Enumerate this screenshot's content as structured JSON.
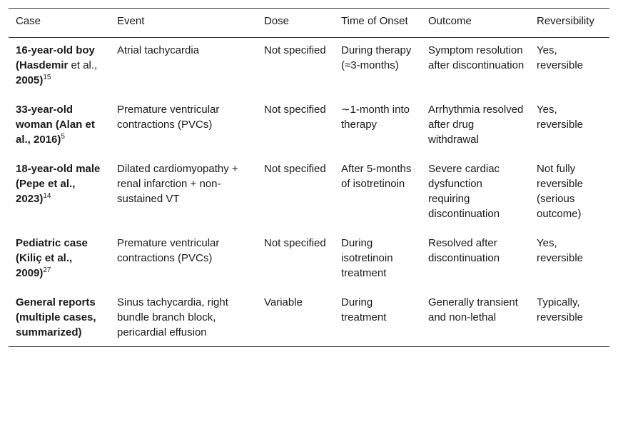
{
  "headers": [
    "Case",
    "Event",
    "Dose",
    "Time of Onset",
    "Outcome",
    "Reversibility"
  ],
  "rows": [
    {
      "case_bold_1": "16-year-old boy (Hasdemir",
      "case_normal": " et al., ",
      "case_bold_2": "2005)",
      "case_ref": "15",
      "event": "Atrial tachycardia",
      "dose": "Not specified",
      "onset": "During therapy (≈3-months)",
      "outcome": "Symptom resolution after discontinuation",
      "reversibility": "Yes, reversible"
    },
    {
      "case_bold_1": "33-year-old woman (Alan et al., 2016)",
      "case_normal": "",
      "case_bold_2": "",
      "case_ref": "5",
      "event": "Premature ventricular contractions (PVCs)",
      "dose": "Not specified",
      "onset": "∼1-month into therapy",
      "outcome": "Arrhythmia resolved after drug withdrawal",
      "reversibility": "Yes, reversible"
    },
    {
      "case_bold_1": "18-year-old male (Pepe et al., 2023)",
      "case_normal": "",
      "case_bold_2": "",
      "case_ref": "14",
      "event": "Dilated cardiomyopathy + renal infarction + non-sustained VT",
      "dose": "Not specified",
      "onset": "After 5-months of isotretinoin",
      "outcome": "Severe cardiac dysfunction requiring discontinuation",
      "reversibility": "Not fully reversible (serious outcome)"
    },
    {
      "case_bold_1": "Pediatric case (Kiliç et al., 2009)",
      "case_normal": "",
      "case_bold_2": "",
      "case_ref": "27",
      "event": "Premature ventricular contractions (PVCs)",
      "dose": "Not specified",
      "onset": "During isotretinoin treatment",
      "outcome": "Resolved after discontinuation",
      "reversibility": "Yes, reversible"
    },
    {
      "case_bold_1": "General reports (multiple cases, summarized)",
      "case_normal": "",
      "case_bold_2": "",
      "case_ref": "",
      "event": "Sinus tachycardia, right bundle branch block, pericardial effusion",
      "dose": "Variable",
      "onset": "During treatment",
      "outcome": "Generally transient and non-lethal",
      "reversibility": "Typically, reversible"
    }
  ]
}
